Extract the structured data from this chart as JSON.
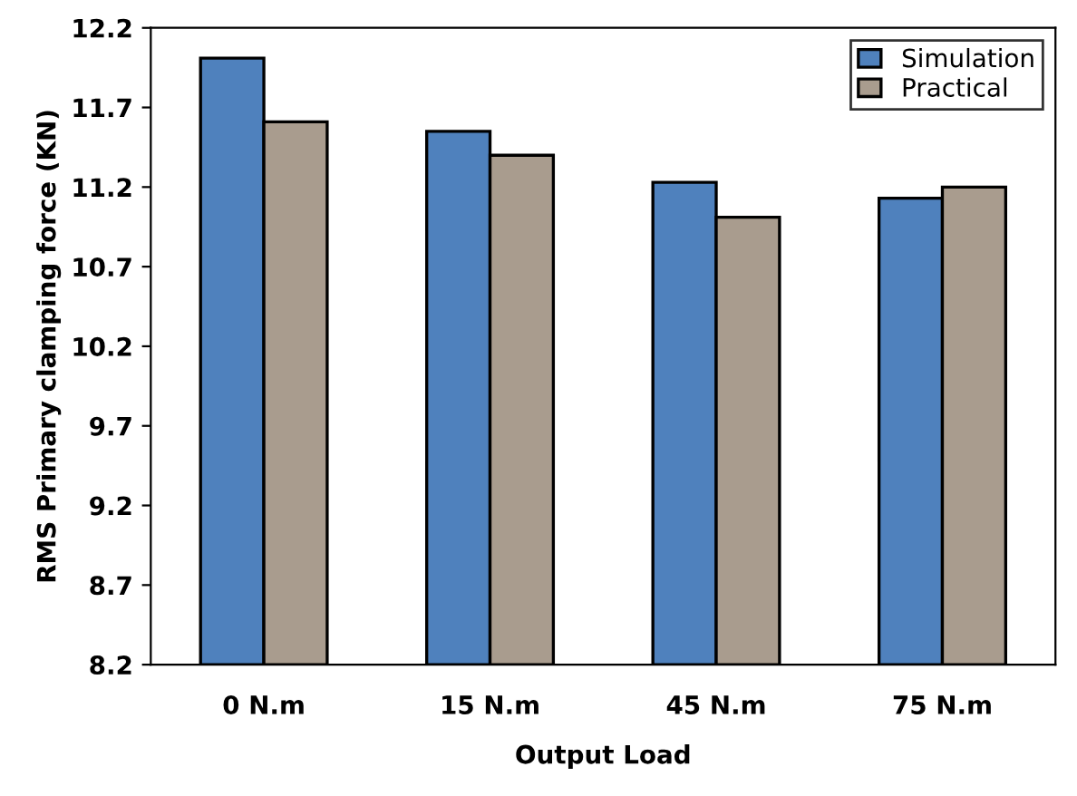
{
  "chart_data": {
    "type": "bar",
    "xlabel": "Output Load",
    "ylabel": "RMS Primary clamping force (KN)",
    "categories": [
      "0 N.m",
      "15 N.m",
      "45 N.m",
      "75 N.m"
    ],
    "series": [
      {
        "name": "Simulation",
        "color": "#4f81bd",
        "values": [
          12.01,
          11.55,
          11.23,
          11.13
        ]
      },
      {
        "name": "Practical",
        "color": "#a99c8e",
        "values": [
          11.61,
          11.4,
          11.01,
          11.2
        ]
      }
    ],
    "ylim": [
      8.2,
      12.2
    ],
    "yticks": [
      {
        "value": 8.2,
        "label": "8.2"
      },
      {
        "value": 8.7,
        "label": "8.7"
      },
      {
        "value": 9.2,
        "label": "9.2"
      },
      {
        "value": 9.7,
        "label": "9.7"
      },
      {
        "value": 10.2,
        "label": "10.2"
      },
      {
        "value": 10.7,
        "label": "10.7"
      },
      {
        "value": 11.2,
        "label": "11.2"
      },
      {
        "value": 11.7,
        "label": "11.7"
      },
      {
        "value": 12.2,
        "label": "12.2"
      }
    ],
    "grid": false,
    "legend": "top right"
  }
}
